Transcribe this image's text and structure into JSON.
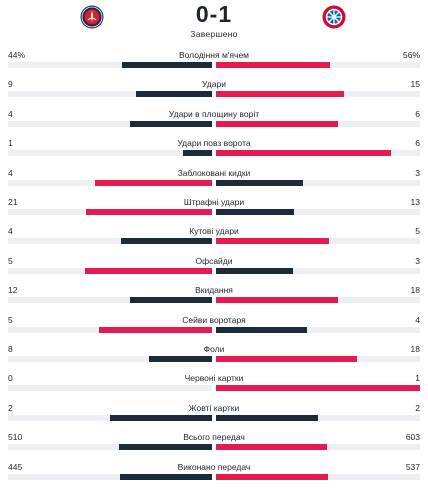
{
  "match": {
    "score": "0-1",
    "status": "Завершено",
    "home_team_icon": "psg-crest-icon",
    "away_team_icon": "bayern-crest-icon"
  },
  "colors": {
    "leader": "#e41b50",
    "trailer": "#1c2b39",
    "track": "#eeeff2"
  },
  "stats": [
    {
      "label": "Володіння м'ячем",
      "home": "44%",
      "away": "56%",
      "home_value": 44,
      "away_value": 56
    },
    {
      "label": "Удари",
      "home": "9",
      "away": "15",
      "home_value": 9,
      "away_value": 15
    },
    {
      "label": "Удари в площину воріт",
      "home": "4",
      "away": "6",
      "home_value": 4,
      "away_value": 6
    },
    {
      "label": "Удари повз ворота",
      "home": "1",
      "away": "6",
      "home_value": 1,
      "away_value": 6
    },
    {
      "label": "Заблоковані кидки",
      "home": "4",
      "away": "3",
      "home_value": 4,
      "away_value": 3
    },
    {
      "label": "Штрафні удари",
      "home": "21",
      "away": "13",
      "home_value": 21,
      "away_value": 13
    },
    {
      "label": "Кутові удари",
      "home": "4",
      "away": "5",
      "home_value": 4,
      "away_value": 5
    },
    {
      "label": "Офсайди",
      "home": "5",
      "away": "3",
      "home_value": 5,
      "away_value": 3
    },
    {
      "label": "Вкидання",
      "home": "12",
      "away": "18",
      "home_value": 12,
      "away_value": 18
    },
    {
      "label": "Сейви воротаря",
      "home": "5",
      "away": "4",
      "home_value": 5,
      "away_value": 4
    },
    {
      "label": "Фоли",
      "home": "8",
      "away": "18",
      "home_value": 8,
      "away_value": 18
    },
    {
      "label": "Червоні картки",
      "home": "0",
      "away": "1",
      "home_value": 0,
      "away_value": 1
    },
    {
      "label": "Жовті картки",
      "home": "2",
      "away": "2",
      "home_value": 2,
      "away_value": 2
    },
    {
      "label": "Всього передач",
      "home": "510",
      "away": "603",
      "home_value": 510,
      "away_value": 603
    },
    {
      "label": "Виконано передач",
      "home": "445",
      "away": "537",
      "home_value": 445,
      "away_value": 537
    }
  ]
}
